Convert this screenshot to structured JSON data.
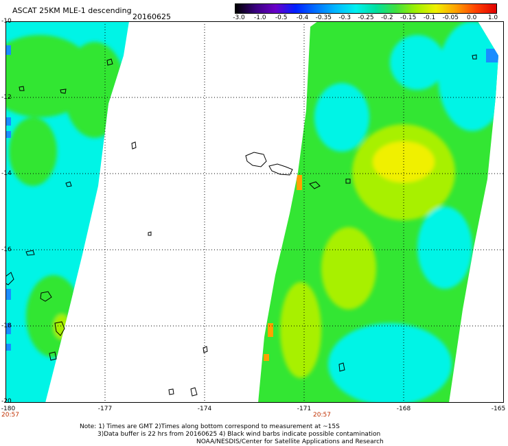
{
  "header": {
    "title": "ASCAT 25KM MLE-1 descending",
    "date": "20160625"
  },
  "colorbar": {
    "labels": [
      "-3.0",
      "-1.0",
      "-0.5",
      "-0.4",
      "-0.35",
      "-0.3",
      "-0.25",
      "-0.2",
      "-0.15",
      "-0.1",
      "-0.05",
      "0.0",
      "1.0"
    ],
    "colors": [
      "#000000",
      "#3a007f",
      "#6a00c8",
      "#0020ff",
      "#0070ff",
      "#00b8ff",
      "#00f0f0",
      "#00e0a0",
      "#40e040",
      "#a0f000",
      "#f0f000",
      "#ffa000",
      "#ff4000",
      "#e00000"
    ]
  },
  "axes": {
    "y_labels": [
      "-10",
      "-12",
      "-14",
      "-16",
      "-18",
      "-20"
    ],
    "x_labels": [
      "-180",
      "-177",
      "-174",
      "-171",
      "-168",
      "-165"
    ],
    "lat_range": [
      -20,
      -10
    ],
    "lon_range": [
      -180,
      -165
    ]
  },
  "times": {
    "left": "20:57",
    "right": "20:57"
  },
  "notes": {
    "line1": "Note: 1) Times are GMT 2)Times along bottom correspond to measurement at ~15S",
    "line2": "3)Data buffer is 22 hrs from 20160625 4) Black wind barbs indicate possible contamination",
    "line3": "NOAA/NESDIS/Center for Satellite Applications and Research"
  },
  "palette": {
    "cyan": "#00f4e6",
    "green": "#33e633",
    "lime": "#a8f000",
    "yellow": "#f0f000",
    "orange": "#ffa000",
    "blue": "#1a8cff",
    "frame": "#000000"
  }
}
